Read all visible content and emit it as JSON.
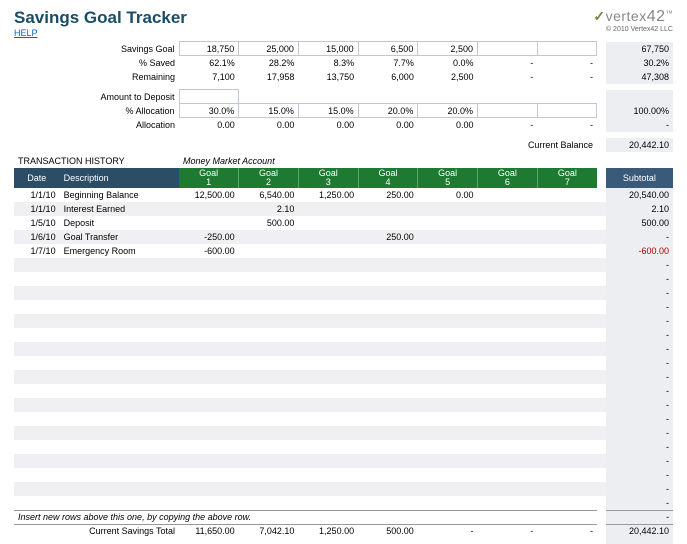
{
  "header": {
    "title": "Savings Goal Tracker",
    "help": "HELP",
    "copyright": "© 2010 Vertex42 LLC",
    "logo_main": "vertex",
    "logo_num": "42",
    "logo_tm": "™"
  },
  "summary": {
    "rows": [
      {
        "label": "Savings Goal",
        "cells": [
          "18,750",
          "25,000",
          "15,000",
          "6,500",
          "2,500",
          "",
          ""
        ],
        "boxed": true,
        "subtotal": "67,750"
      },
      {
        "label": "% Saved",
        "cells": [
          "62.1%",
          "28.2%",
          "8.3%",
          "7.7%",
          "0.0%",
          "-",
          "-"
        ],
        "boxed": false,
        "subtotal": "30.2%"
      },
      {
        "label": "Remaining",
        "cells": [
          "7,100",
          "17,958",
          "13,750",
          "6,000",
          "2,500",
          "-",
          "-"
        ],
        "boxed": false,
        "subtotal": "47,308"
      }
    ],
    "alloc_rows": [
      {
        "label": "Amount to Deposit",
        "input": true,
        "cells": [
          "",
          "",
          "",
          "",
          "",
          "",
          ""
        ],
        "subtotal": ""
      },
      {
        "label": "% Allocation",
        "cells": [
          "30.0%",
          "15.0%",
          "15.0%",
          "20.0%",
          "20.0%",
          "",
          ""
        ],
        "boxed": true,
        "subtotal": "100.00%"
      },
      {
        "label": "Allocation",
        "cells": [
          "0.00",
          "0.00",
          "0.00",
          "0.00",
          "0.00",
          "-",
          "-"
        ],
        "boxed": false,
        "subtotal": "-"
      }
    ]
  },
  "current_balance": {
    "label": "Current Balance",
    "value": "20,442.10"
  },
  "txn": {
    "section": "TRANSACTION HISTORY",
    "account": "Money Market Account",
    "hist_headers": [
      "Date",
      "Description"
    ],
    "goal_headers": [
      "Goal 1",
      "Goal 2",
      "Goal 3",
      "Goal 4",
      "Goal 5",
      "Goal 6",
      "Goal 7"
    ],
    "subtotal_header": "Subtotal",
    "rows": [
      {
        "date": "1/1/10",
        "desc": "Beginning Balance",
        "vals": [
          "12,500.00",
          "6,540.00",
          "1,250.00",
          "250.00",
          "0.00",
          "",
          ""
        ],
        "sub": "20,540.00"
      },
      {
        "date": "1/1/10",
        "desc": "Interest Earned",
        "vals": [
          "",
          "2.10",
          "",
          "",
          "",
          "",
          ""
        ],
        "sub": "2.10"
      },
      {
        "date": "1/5/10",
        "desc": "Deposit",
        "vals": [
          "",
          "500.00",
          "",
          "",
          "",
          "",
          ""
        ],
        "sub": "500.00"
      },
      {
        "date": "1/6/10",
        "desc": "Goal Transfer",
        "vals": [
          "-250.00",
          "",
          "",
          "250.00",
          "",
          "",
          ""
        ],
        "sub": "-"
      },
      {
        "date": "1/7/10",
        "desc": "Emergency Room",
        "vals": [
          "-600.00",
          "",
          "",
          "",
          "",
          "",
          ""
        ],
        "sub": "-600.00",
        "neg": true
      }
    ],
    "empty_rows": 18,
    "insert_note": "Insert new rows above this one, by copying the above row.",
    "totals_label": "Current Savings Total",
    "totals": [
      "11,650.00",
      "7,042.10",
      "1,250.00",
      "500.00",
      "-",
      "-",
      "-"
    ],
    "totals_sub": "20,442.10"
  },
  "colors": {
    "goal_header_bg": "#1d7a30",
    "hist_header_bg": "#2b4d66",
    "sub_bg": "#eceef2"
  }
}
